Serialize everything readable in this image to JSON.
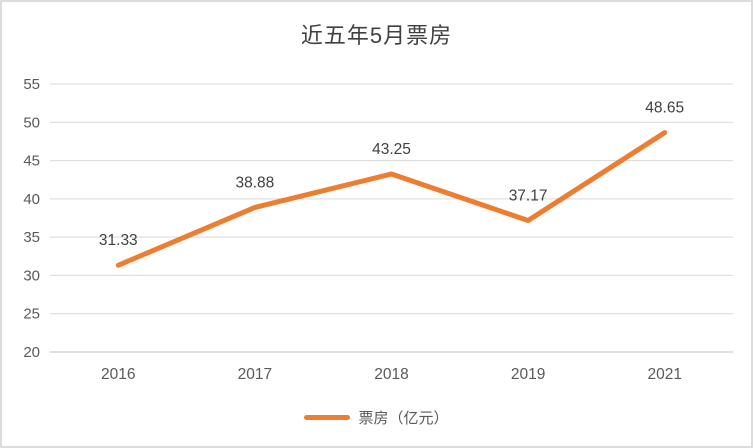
{
  "window": {
    "title": "近五年5月票房"
  },
  "legend": {
    "label": "票房（亿元）"
  },
  "colors": {
    "series_line": "#ED7D31",
    "gridline": "#D9D9D9",
    "axis_line": "#BFBFBF",
    "axis_text": "#595959",
    "data_label_text": "#404040",
    "title_text": "#404040"
  },
  "chart_data": {
    "type": "line",
    "title": "近五年5月票房",
    "categories": [
      "2016",
      "2017",
      "2018",
      "2019",
      "2021"
    ],
    "series": [
      {
        "name": "票房（亿元）",
        "values": [
          31.33,
          38.88,
          43.25,
          37.17,
          48.65
        ],
        "data_labels": [
          "31.33",
          "38.88",
          "43.25",
          "37.17",
          "48.65"
        ],
        "color": "#ED7D31"
      }
    ],
    "xlabel": "",
    "ylabel": "",
    "ylim": [
      20,
      55
    ],
    "ytick_step": 5,
    "ytick_labels": [
      "20",
      "25",
      "30",
      "35",
      "40",
      "45",
      "50",
      "55"
    ],
    "grid": true,
    "legend_position": "bottom"
  }
}
